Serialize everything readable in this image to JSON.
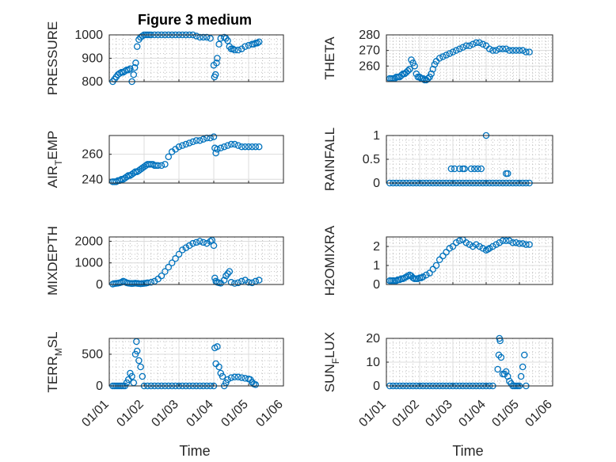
{
  "figure": {
    "title": "Figure 3 medium",
    "marker_color": "#0072bd",
    "x_tick_labels": [
      "01/01",
      "01/02",
      "01/03",
      "01/04",
      "01/05",
      "01/06"
    ]
  },
  "chart_data": [
    {
      "type": "scatter",
      "ylabel": "PRESSURE",
      "xlabel": "",
      "xlim": [
        1,
        6
      ],
      "ylim": [
        800,
        1000
      ],
      "yticks": [
        800,
        900,
        1000
      ],
      "ytick_labels": [
        "800",
        "900",
        "1000"
      ],
      "grid": true,
      "minor_grid": true,
      "x": [
        1.1,
        1.15,
        1.2,
        1.25,
        1.3,
        1.35,
        1.4,
        1.45,
        1.5,
        1.55,
        1.6,
        1.65,
        1.7,
        1.73,
        1.76,
        1.8,
        1.85,
        1.9,
        1.95,
        2.0,
        2.05,
        2.1,
        2.15,
        2.2,
        2.3,
        2.4,
        2.5,
        2.6,
        2.7,
        2.8,
        2.9,
        3.0,
        3.1,
        3.2,
        3.3,
        3.4,
        3.5,
        3.6,
        3.7,
        3.8,
        3.9,
        4.0,
        4.02,
        4.05,
        4.08,
        4.1,
        4.15,
        4.2,
        4.3,
        4.35,
        4.4,
        4.45,
        4.5,
        4.55,
        4.6,
        4.7,
        4.8,
        4.9,
        5.0,
        5.1,
        5.15,
        5.2,
        5.25,
        5.3
      ],
      "y": [
        800,
        810,
        820,
        830,
        835,
        840,
        840,
        845,
        850,
        850,
        855,
        800,
        830,
        860,
        880,
        950,
        980,
        990,
        995,
        1000,
        1000,
        1000,
        1000,
        1000,
        1000,
        1000,
        1000,
        1000,
        1000,
        1000,
        1000,
        1000,
        1000,
        1000,
        1000,
        1000,
        995,
        990,
        990,
        990,
        985,
        870,
        820,
        830,
        880,
        900,
        960,
        985,
        990,
        985,
        975,
        950,
        940,
        940,
        935,
        935,
        940,
        950,
        955,
        960,
        960,
        965,
        965,
        970
      ]
    },
    {
      "type": "scatter",
      "ylabel": "THETA",
      "xlabel": "",
      "xlim": [
        1,
        6
      ],
      "ylim": [
        250,
        280
      ],
      "yticks": [
        260,
        270,
        280
      ],
      "ytick_labels": [
        "260",
        "270",
        "280"
      ],
      "grid": true,
      "minor_grid": true,
      "x": [
        1.1,
        1.15,
        1.2,
        1.25,
        1.3,
        1.35,
        1.4,
        1.45,
        1.5,
        1.55,
        1.6,
        1.65,
        1.7,
        1.75,
        1.8,
        1.85,
        1.9,
        1.95,
        2.0,
        2.05,
        2.1,
        2.15,
        2.2,
        2.25,
        2.3,
        2.35,
        2.4,
        2.45,
        2.5,
        2.6,
        2.7,
        2.8,
        2.9,
        3.0,
        3.1,
        3.2,
        3.3,
        3.4,
        3.5,
        3.6,
        3.7,
        3.8,
        3.9,
        4.0,
        4.1,
        4.2,
        4.3,
        4.4,
        4.5,
        4.6,
        4.7,
        4.8,
        4.9,
        5.0,
        5.1,
        5.2,
        5.3
      ],
      "y": [
        252,
        252,
        252,
        252,
        253,
        253,
        253,
        254,
        255,
        255,
        256,
        257,
        258,
        264,
        262,
        260,
        255,
        253,
        253,
        252,
        252,
        251,
        251,
        252,
        253,
        255,
        258,
        261,
        263,
        265,
        266,
        267,
        268,
        269,
        270,
        271,
        272,
        273,
        273,
        274,
        275,
        275,
        274,
        273,
        271,
        270,
        270,
        271,
        271,
        271,
        270,
        270,
        270,
        270,
        270,
        269,
        269
      ]
    },
    {
      "type": "scatter",
      "ylabel": "AIR_TEMP",
      "ylabel_main": "AIR",
      "ylabel_sub": "T",
      "ylabel_rest": "EMP",
      "xlabel": "",
      "xlim": [
        1,
        6
      ],
      "ylim": [
        237,
        275
      ],
      "yticks": [
        240,
        260
      ],
      "ytick_labels": [
        "240",
        "260"
      ],
      "grid": true,
      "minor_grid": false,
      "x": [
        1.1,
        1.15,
        1.2,
        1.25,
        1.3,
        1.35,
        1.4,
        1.45,
        1.5,
        1.55,
        1.6,
        1.65,
        1.7,
        1.75,
        1.8,
        1.85,
        1.9,
        1.95,
        2.0,
        2.05,
        2.1,
        2.15,
        2.2,
        2.25,
        2.3,
        2.35,
        2.4,
        2.5,
        2.6,
        2.7,
        2.8,
        2.9,
        3.0,
        3.1,
        3.2,
        3.3,
        3.4,
        3.5,
        3.6,
        3.7,
        3.8,
        3.9,
        4.0,
        4.03,
        4.06,
        4.1,
        4.2,
        4.3,
        4.4,
        4.5,
        4.6,
        4.7,
        4.8,
        4.9,
        5.0,
        5.1,
        5.2,
        5.3
      ],
      "y": [
        238,
        238,
        238,
        239,
        239,
        240,
        240,
        241,
        242,
        243,
        243,
        244,
        245,
        246,
        246,
        247,
        248,
        249,
        250,
        251,
        252,
        252,
        252,
        252,
        251,
        251,
        251,
        251,
        252,
        258,
        262,
        264,
        266,
        267,
        268,
        269,
        270,
        271,
        271,
        272,
        273,
        273,
        274,
        265,
        261,
        264,
        265,
        266,
        267,
        268,
        268,
        267,
        266,
        266,
        266,
        266,
        266,
        266
      ]
    },
    {
      "type": "scatter",
      "ylabel": "RAINFALL",
      "xlabel": "",
      "xlim": [
        1,
        6
      ],
      "ylim": [
        0,
        1
      ],
      "yticks": [
        0,
        0.5,
        1
      ],
      "ytick_labels": [
        "0",
        "0.5",
        "1"
      ],
      "grid": true,
      "minor_grid": true,
      "x": [
        1.1,
        1.2,
        1.3,
        1.4,
        1.5,
        1.6,
        1.7,
        1.8,
        1.9,
        2.0,
        2.1,
        2.2,
        2.3,
        2.4,
        2.5,
        2.6,
        2.7,
        2.8,
        2.9,
        3.0,
        3.1,
        3.2,
        3.3,
        3.4,
        3.5,
        3.6,
        3.7,
        3.8,
        3.9,
        4.0,
        4.1,
        4.2,
        4.3,
        4.4,
        4.5,
        4.6,
        4.7,
        4.8,
        4.9,
        5.0,
        5.1,
        5.2,
        5.3,
        2.95,
        3.05,
        3.2,
        3.3,
        3.35,
        3.55,
        3.65,
        3.75,
        3.85,
        4.0,
        4.6,
        4.65
      ],
      "y": [
        0,
        0,
        0,
        0,
        0,
        0,
        0,
        0,
        0,
        0,
        0,
        0,
        0,
        0,
        0,
        0,
        0,
        0,
        0,
        0,
        0,
        0,
        0,
        0,
        0,
        0,
        0,
        0,
        0,
        0,
        0,
        0,
        0,
        0,
        0,
        0,
        0,
        0,
        0,
        0,
        0,
        0,
        0,
        0.3,
        0.3,
        0.3,
        0.3,
        0.3,
        0.3,
        0.3,
        0.3,
        0.3,
        1.0,
        0.2,
        0.2
      ]
    },
    {
      "type": "scatter",
      "ylabel": "MIXDEPTH",
      "xlabel": "",
      "xlim": [
        1,
        6
      ],
      "ylim": [
        0,
        2200
      ],
      "yticks": [
        0,
        1000,
        2000
      ],
      "ytick_labels": [
        "0",
        "1000",
        "2000"
      ],
      "grid": true,
      "minor_grid": true,
      "x": [
        1.1,
        1.15,
        1.2,
        1.25,
        1.3,
        1.35,
        1.4,
        1.45,
        1.5,
        1.55,
        1.6,
        1.65,
        1.7,
        1.75,
        1.8,
        1.85,
        1.9,
        1.95,
        2.0,
        2.05,
        2.1,
        2.2,
        2.3,
        2.4,
        2.5,
        2.6,
        2.7,
        2.8,
        2.9,
        3.0,
        3.1,
        3.2,
        3.3,
        3.4,
        3.5,
        3.6,
        3.7,
        3.8,
        3.9,
        3.95,
        4.0,
        4.03,
        4.06,
        4.1,
        4.15,
        4.2,
        4.3,
        4.35,
        4.4,
        4.45,
        4.5,
        4.6,
        4.7,
        4.8,
        4.9,
        5.0,
        5.1,
        5.2,
        5.3
      ],
      "y": [
        20,
        40,
        50,
        60,
        80,
        100,
        150,
        120,
        80,
        60,
        50,
        40,
        50,
        60,
        50,
        40,
        30,
        40,
        50,
        60,
        80,
        100,
        150,
        250,
        400,
        600,
        800,
        1000,
        1200,
        1400,
        1600,
        1700,
        1800,
        1900,
        1950,
        2000,
        1950,
        1900,
        2000,
        2050,
        1800,
        300,
        150,
        100,
        80,
        60,
        200,
        400,
        500,
        600,
        100,
        50,
        80,
        150,
        200,
        100,
        80,
        150,
        200
      ]
    },
    {
      "type": "scatter",
      "ylabel": "H2OMIXRA",
      "xlabel": "",
      "xlim": [
        1,
        6
      ],
      "ylim": [
        0,
        2.5
      ],
      "yticks": [
        0,
        1,
        2
      ],
      "ytick_labels": [
        "0",
        "1",
        "2"
      ],
      "grid": true,
      "minor_grid": true,
      "x": [
        1.1,
        1.15,
        1.2,
        1.25,
        1.3,
        1.35,
        1.4,
        1.45,
        1.5,
        1.55,
        1.6,
        1.65,
        1.7,
        1.75,
        1.8,
        1.85,
        1.9,
        1.95,
        2.0,
        2.05,
        2.1,
        2.2,
        2.3,
        2.4,
        2.5,
        2.6,
        2.7,
        2.8,
        2.9,
        3.0,
        3.1,
        3.2,
        3.3,
        3.4,
        3.5,
        3.6,
        3.7,
        3.8,
        3.9,
        4.0,
        4.05,
        4.1,
        4.2,
        4.3,
        4.4,
        4.5,
        4.6,
        4.7,
        4.8,
        4.9,
        5.0,
        5.1,
        5.2,
        5.3
      ],
      "y": [
        0.2,
        0.2,
        0.2,
        0.2,
        0.2,
        0.25,
        0.25,
        0.3,
        0.3,
        0.35,
        0.4,
        0.45,
        0.5,
        0.45,
        0.35,
        0.3,
        0.3,
        0.3,
        0.35,
        0.35,
        0.4,
        0.5,
        0.6,
        0.8,
        1.0,
        1.3,
        1.5,
        1.7,
        1.9,
        2.0,
        2.2,
        2.3,
        2.35,
        2.2,
        2.1,
        2.0,
        2.1,
        2.0,
        1.9,
        1.8,
        1.85,
        1.9,
        2.0,
        2.1,
        2.2,
        2.3,
        2.3,
        2.3,
        2.2,
        2.2,
        2.15,
        2.15,
        2.1,
        2.1
      ]
    },
    {
      "type": "scatter",
      "ylabel": "TERR_MSL",
      "ylabel_main": "TERR",
      "ylabel_sub": "M",
      "ylabel_rest": "SL",
      "xlabel": "Time",
      "xlim": [
        1,
        6
      ],
      "ylim": [
        0,
        750
      ],
      "yticks": [
        0,
        500
      ],
      "ytick_labels": [
        "0",
        "500"
      ],
      "grid": true,
      "minor_grid": true,
      "x": [
        1.1,
        1.15,
        1.2,
        1.25,
        1.3,
        1.35,
        1.4,
        1.45,
        1.5,
        1.55,
        1.6,
        1.65,
        1.7,
        1.75,
        1.78,
        1.8,
        1.85,
        1.9,
        1.95,
        2.0,
        2.1,
        2.2,
        2.3,
        2.4,
        2.5,
        2.6,
        2.7,
        2.8,
        2.9,
        3.0,
        3.1,
        3.2,
        3.3,
        3.4,
        3.5,
        3.6,
        3.7,
        3.8,
        3.9,
        4.0,
        4.03,
        4.06,
        4.1,
        4.15,
        4.2,
        4.25,
        4.3,
        4.35,
        4.4,
        4.5,
        4.6,
        4.7,
        4.8,
        4.9,
        5.0,
        5.05,
        5.1,
        5.15,
        5.2
      ],
      "y": [
        0,
        0,
        0,
        0,
        0,
        0,
        0,
        0,
        50,
        100,
        200,
        150,
        50,
        500,
        700,
        550,
        400,
        300,
        150,
        0,
        0,
        0,
        0,
        0,
        0,
        0,
        0,
        0,
        0,
        0,
        0,
        0,
        0,
        0,
        0,
        0,
        0,
        0,
        0,
        0,
        600,
        350,
        620,
        300,
        200,
        150,
        0,
        50,
        100,
        130,
        140,
        140,
        130,
        120,
        110,
        100,
        60,
        30,
        20
      ]
    },
    {
      "type": "scatter",
      "ylabel": "SUN_FLUX",
      "ylabel_main": "SUN",
      "ylabel_sub": "F",
      "ylabel_rest": "LUX",
      "xlabel": "Time",
      "xlim": [
        1,
        6
      ],
      "ylim": [
        0,
        20
      ],
      "yticks": [
        0,
        10,
        20
      ],
      "ytick_labels": [
        "0",
        "10",
        "20"
      ],
      "grid": true,
      "minor_grid": true,
      "x": [
        1.1,
        1.2,
        1.3,
        1.4,
        1.5,
        1.6,
        1.7,
        1.8,
        1.9,
        2.0,
        2.1,
        2.2,
        2.3,
        2.4,
        2.5,
        2.6,
        2.7,
        2.8,
        2.9,
        3.0,
        3.1,
        3.2,
        3.3,
        3.4,
        3.5,
        3.6,
        3.7,
        3.8,
        3.9,
        4.0,
        4.1,
        4.2,
        4.35,
        4.38,
        4.4,
        4.42,
        4.45,
        4.5,
        4.55,
        4.6,
        4.65,
        4.7,
        4.75,
        4.8,
        4.85,
        4.9,
        4.95,
        5.0,
        5.05,
        5.1,
        5.15,
        5.2
      ],
      "y": [
        0,
        0,
        0,
        0,
        0,
        0,
        0,
        0,
        0,
        0,
        0,
        0,
        0,
        0,
        0,
        0,
        0,
        0,
        0,
        0,
        0,
        0,
        0,
        0,
        0,
        0,
        0,
        0,
        0,
        0,
        0,
        0,
        7,
        13,
        20,
        19,
        12,
        5,
        5,
        6,
        4,
        2,
        1,
        0,
        0,
        0,
        0,
        0,
        4,
        8,
        13,
        0
      ]
    }
  ]
}
